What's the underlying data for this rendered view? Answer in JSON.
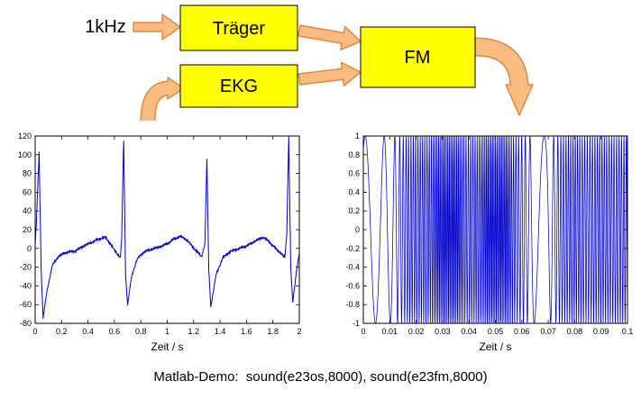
{
  "diagram": {
    "input_label": "1kHz",
    "carrier_label": "Träger",
    "ekg_label": "EKG",
    "fm_label": "FM",
    "colors": {
      "arrow_fill": "#F9BC80",
      "arrow_stroke": "#E0893E",
      "box_fill": "#FFFF00",
      "box_stroke": "#000000"
    }
  },
  "caption": "Matlab-Demo:  sound(e23os,8000), sound(e23fm,8000)",
  "chart_data": [
    {
      "id": "ekg-plot",
      "type": "line",
      "title": "",
      "xlabel": "Zeit / s",
      "ylabel": "",
      "xlim": [
        0,
        2
      ],
      "ylim": [
        -80,
        120
      ],
      "xticks": [
        0,
        0.2,
        0.4,
        0.6,
        0.8,
        1,
        1.2,
        1.4,
        1.6,
        1.8,
        2
      ],
      "yticks": [
        -80,
        -60,
        -40,
        -20,
        0,
        20,
        40,
        60,
        80,
        100,
        120
      ],
      "line_color": "#0000CC",
      "grid": false,
      "noise_amp": 1.3,
      "points": [
        [
          0,
          2
        ],
        [
          0.01,
          30
        ],
        [
          0.03,
          103
        ],
        [
          0.045,
          -20
        ],
        [
          0.06,
          -75
        ],
        [
          0.09,
          -45
        ],
        [
          0.13,
          -18
        ],
        [
          0.18,
          -8
        ],
        [
          0.24,
          -4
        ],
        [
          0.3,
          -3
        ],
        [
          0.36,
          2
        ],
        [
          0.42,
          6
        ],
        [
          0.48,
          10
        ],
        [
          0.53,
          12
        ],
        [
          0.57,
          5
        ],
        [
          0.6,
          -2
        ],
        [
          0.625,
          -6
        ],
        [
          0.645,
          -10
        ],
        [
          0.655,
          10
        ],
        [
          0.67,
          115
        ],
        [
          0.685,
          -30
        ],
        [
          0.7,
          -60
        ],
        [
          0.73,
          -30
        ],
        [
          0.77,
          -12
        ],
        [
          0.82,
          -4
        ],
        [
          0.88,
          -1
        ],
        [
          0.95,
          2
        ],
        [
          1.0,
          5
        ],
        [
          1.05,
          10
        ],
        [
          1.1,
          13
        ],
        [
          1.15,
          9
        ],
        [
          1.19,
          2
        ],
        [
          1.23,
          -4
        ],
        [
          1.26,
          -9
        ],
        [
          1.285,
          5
        ],
        [
          1.3,
          95
        ],
        [
          1.315,
          -25
        ],
        [
          1.33,
          -62
        ],
        [
          1.37,
          -28
        ],
        [
          1.42,
          -10
        ],
        [
          1.48,
          -3
        ],
        [
          1.55,
          0
        ],
        [
          1.62,
          4
        ],
        [
          1.68,
          9
        ],
        [
          1.73,
          12
        ],
        [
          1.78,
          6
        ],
        [
          1.82,
          0
        ],
        [
          1.86,
          -5
        ],
        [
          1.89,
          -10
        ],
        [
          1.905,
          15
        ],
        [
          1.92,
          120
        ],
        [
          1.935,
          -20
        ],
        [
          1.95,
          -58
        ],
        [
          1.98,
          -22
        ],
        [
          2.0,
          -5
        ]
      ]
    },
    {
      "id": "fm-plot",
      "type": "line",
      "title": "",
      "xlabel": "Zeit / s",
      "ylabel": "",
      "xlim": [
        0,
        0.1
      ],
      "ylim": [
        -1,
        1
      ],
      "xticks": [
        0,
        0.01,
        0.02,
        0.03,
        0.04,
        0.05,
        0.06,
        0.07,
        0.08,
        0.09,
        0.1
      ],
      "yticks": [
        -1,
        -0.8,
        -0.6,
        -0.4,
        -0.2,
        0,
        0.2,
        0.4,
        0.6,
        0.8,
        1
      ],
      "line_color": "#0000CC",
      "grid": false,
      "signal": {
        "kind": "fm_sine",
        "amplitude": 1,
        "phase0": 1.0,
        "sample_rate": 40000,
        "freq_profile": [
          [
            0,
            120
          ],
          [
            0.006,
            140
          ],
          [
            0.011,
            260
          ],
          [
            0.014,
            700
          ],
          [
            0.017,
            1100
          ],
          [
            0.025,
            1200
          ],
          [
            0.029,
            1700
          ],
          [
            0.035,
            1800
          ],
          [
            0.039,
            1100
          ],
          [
            0.044,
            1300
          ],
          [
            0.048,
            1800
          ],
          [
            0.054,
            1700
          ],
          [
            0.058,
            1000
          ],
          [
            0.062,
            600
          ],
          [
            0.065,
            150
          ],
          [
            0.069,
            100
          ],
          [
            0.072,
            500
          ],
          [
            0.075,
            1000
          ],
          [
            0.08,
            1200
          ],
          [
            0.085,
            1000
          ],
          [
            0.09,
            1150
          ],
          [
            0.095,
            1050
          ],
          [
            0.1,
            1100
          ]
        ]
      }
    }
  ]
}
